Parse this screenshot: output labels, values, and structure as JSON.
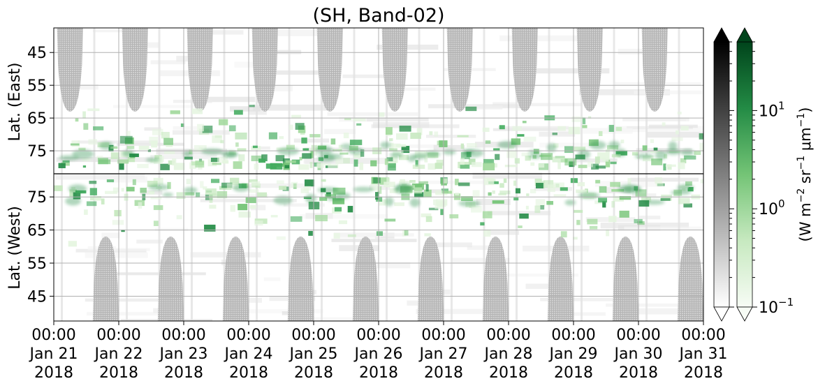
{
  "chart_data": {
    "type": "heatmap",
    "title": "(SH, Band-02)",
    "x_ticks": [
      {
        "time": "00:00",
        "date": "Jan 21",
        "year": "2018"
      },
      {
        "time": "00:00",
        "date": "Jan 22",
        "year": "2018"
      },
      {
        "time": "00:00",
        "date": "Jan 23",
        "year": "2018"
      },
      {
        "time": "00:00",
        "date": "Jan 24",
        "year": "2018"
      },
      {
        "time": "00:00",
        "date": "Jan 25",
        "year": "2018"
      },
      {
        "time": "00:00",
        "date": "Jan 26",
        "year": "2018"
      },
      {
        "time": "00:00",
        "date": "Jan 27",
        "year": "2018"
      },
      {
        "time": "00:00",
        "date": "Jan 28",
        "year": "2018"
      },
      {
        "time": "00:00",
        "date": "Jan 29",
        "year": "2018"
      },
      {
        "time": "00:00",
        "date": "Jan 30",
        "year": "2018"
      },
      {
        "time": "00:00",
        "date": "Jan 31",
        "year": "2018"
      }
    ],
    "x_range": [
      "2018-01-21 00:00",
      "2018-01-31 00:00"
    ],
    "east_panel": {
      "ylabel": "Lat. (East)",
      "ytick_labels": [
        "45",
        "55",
        "65",
        "75"
      ],
      "yticks": [
        45,
        55,
        65,
        75
      ],
      "ylim": [
        37.5,
        82
      ]
    },
    "west_panel": {
      "ylabel": "Lat. (West)",
      "ytick_labels": [
        "75",
        "65",
        "55",
        "45"
      ],
      "yticks": [
        75,
        65,
        55,
        45
      ],
      "ylim": [
        82,
        37.5
      ]
    },
    "grid": true,
    "daylight_gaps": {
      "east_center_days": [
        0.25,
        1.25,
        2.25,
        3.25,
        4.25,
        5.25,
        6.25,
        7.25,
        8.25,
        9.25
      ],
      "west_center_days": [
        0.8,
        1.8,
        2.8,
        3.8,
        4.8,
        5.8,
        6.8,
        7.8,
        8.8,
        9.8
      ],
      "max_lat": 63,
      "color": "#c4c4c4"
    },
    "aurora_band": {
      "lat_range": [
        68,
        80
      ],
      "peak_lat": 78
    },
    "colorbars": [
      {
        "name": "grey",
        "scale": "log",
        "range": [
          0.1,
          50
        ],
        "colors": [
          "#ffffff",
          "#000000"
        ]
      },
      {
        "name": "green",
        "scale": "log",
        "range": [
          0.1,
          50
        ],
        "colors": [
          "#f7fcf5",
          "#00441b"
        ],
        "tick_labels": [
          {
            "base": "10",
            "exp": "1",
            "value": 10
          },
          {
            "base": "10",
            "exp": "0",
            "value": 1
          },
          {
            "base": "10",
            "exp": "−1",
            "value": 0.1
          }
        ],
        "label_parts": [
          "(W m",
          "−2",
          " sr",
          "−1",
          " μm",
          "−1",
          ")"
        ]
      }
    ]
  }
}
